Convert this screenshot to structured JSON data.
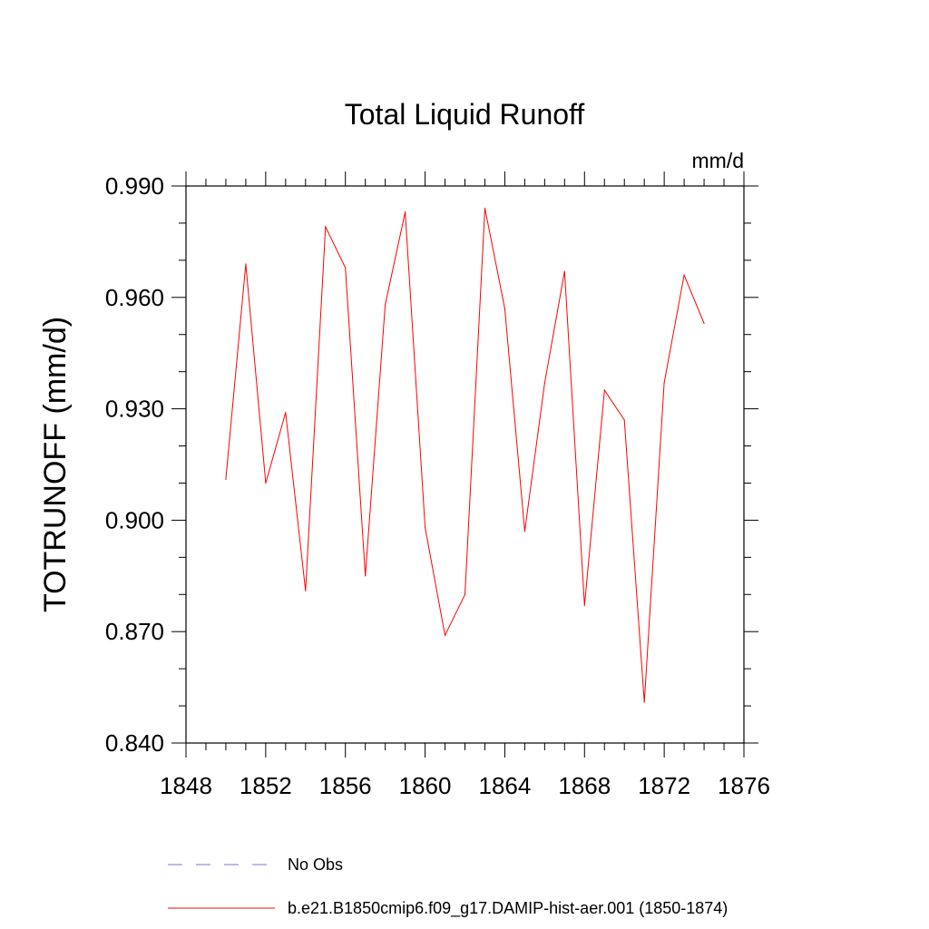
{
  "chart_data": {
    "type": "line",
    "title": "Total Liquid Runoff",
    "units_label": "mm/d",
    "ylabel": "TOTRUNOFF  (mm/d)",
    "xlabel": "",
    "xlim": [
      1848,
      1876
    ],
    "ylim": [
      0.84,
      0.99
    ],
    "x_ticks": [
      1848,
      1852,
      1856,
      1860,
      1864,
      1868,
      1872,
      1876
    ],
    "x_tick_labels": [
      "1848",
      "1852",
      "1856",
      "1860",
      "1864",
      "1868",
      "1872",
      "1876"
    ],
    "y_ticks": [
      0.84,
      0.87,
      0.9,
      0.93,
      0.96,
      0.99
    ],
    "y_tick_labels": [
      "0.840",
      "0.870",
      "0.900",
      "0.930",
      "0.960",
      "0.990"
    ],
    "grid": false,
    "legend_position": "bottom",
    "series": [
      {
        "name": "b.e21.B1850cmip6.f09_g17.DAMIP-hist-aer.001 (1850-1874)",
        "color": "#ff0000",
        "style": "solid",
        "x": [
          1850,
          1851,
          1852,
          1853,
          1854,
          1855,
          1856,
          1857,
          1858,
          1859,
          1860,
          1861,
          1862,
          1863,
          1864,
          1865,
          1866,
          1867,
          1868,
          1869,
          1870,
          1871,
          1872,
          1873,
          1874
        ],
        "y": [
          0.911,
          0.969,
          0.91,
          0.929,
          0.881,
          0.979,
          0.968,
          0.885,
          0.958,
          0.983,
          0.898,
          0.869,
          0.88,
          0.984,
          0.957,
          0.897,
          0.937,
          0.967,
          0.877,
          0.935,
          0.927,
          0.851,
          0.937,
          0.966,
          0.953
        ]
      }
    ],
    "legend": [
      {
        "label": "No Obs",
        "color": "#7a7acc",
        "style": "dashed"
      },
      {
        "label": "b.e21.B1850cmip6.f09_g17.DAMIP-hist-aer.001 (1850-1874)",
        "color": "#ff0000",
        "style": "solid"
      }
    ]
  }
}
